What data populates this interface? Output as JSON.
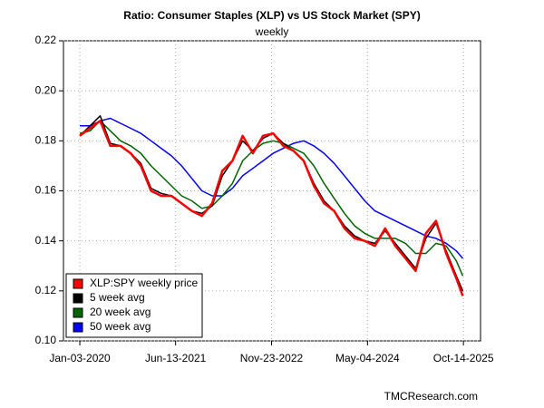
{
  "chart_data": {
    "type": "line",
    "title": "Ratio: Consumer Staples (XLP) vs US Stock Market (SPY)",
    "subtitle": "weekly",
    "source": "TMCResearch.com",
    "x": [
      "2020-01-03",
      "2020-02-28",
      "2020-04-24",
      "2020-06-19",
      "2020-08-14",
      "2020-10-09",
      "2020-12-04",
      "2021-01-29",
      "2021-03-26",
      "2021-05-21",
      "2021-07-16",
      "2021-09-10",
      "2021-11-05",
      "2021-12-31",
      "2022-02-25",
      "2022-04-22",
      "2022-06-17",
      "2022-08-12",
      "2022-10-07",
      "2022-12-02",
      "2023-01-27",
      "2023-03-24",
      "2023-05-19",
      "2023-07-14",
      "2023-09-08",
      "2023-11-03",
      "2023-12-29",
      "2024-02-23",
      "2024-04-19",
      "2024-06-14",
      "2024-08-09",
      "2024-10-04",
      "2024-11-29",
      "2025-01-24",
      "2025-03-21",
      "2025-05-16",
      "2025-07-11",
      "2025-09-05",
      "2025-10-10"
    ],
    "xlim": [
      "2019-10-05",
      "2026-01-16"
    ],
    "xticks": [
      {
        "value": "2020-01-03",
        "label": "Jan-03-2020"
      },
      {
        "value": "2021-06-13",
        "label": "Jun-13-2021"
      },
      {
        "value": "2022-11-23",
        "label": "Nov-23-2022"
      },
      {
        "value": "2024-05-04",
        "label": "May-04-2024"
      },
      {
        "value": "2025-10-14",
        "label": "Oct-14-2025"
      }
    ],
    "ylim": [
      0.1,
      0.22
    ],
    "yticks": [
      {
        "value": 0.1,
        "label": "0.10"
      },
      0.12,
      0.14,
      0.16,
      0.18,
      {
        "value": 0.2,
        "label": "0.20"
      },
      0.22
    ],
    "grid": true,
    "legend": "lower left",
    "series": [
      {
        "name": "XLP:SPY weekly price",
        "color": "#ff0000",
        "values": [
          0.182,
          0.185,
          0.188,
          0.178,
          0.178,
          0.175,
          0.17,
          0.16,
          0.158,
          0.158,
          0.155,
          0.152,
          0.15,
          0.155,
          0.168,
          0.172,
          0.182,
          0.175,
          0.182,
          0.183,
          0.178,
          0.176,
          0.172,
          0.162,
          0.155,
          0.152,
          0.145,
          0.141,
          0.14,
          0.138,
          0.145,
          0.138,
          0.133,
          0.128,
          0.143,
          0.148,
          0.135,
          0.125,
          0.118
        ]
      },
      {
        "name": "5 week avg",
        "color": "#000000",
        "values": [
          0.182,
          0.186,
          0.19,
          0.179,
          0.178,
          0.175,
          0.171,
          0.161,
          0.159,
          0.158,
          0.155,
          0.152,
          0.151,
          0.154,
          0.166,
          0.172,
          0.18,
          0.176,
          0.181,
          0.183,
          0.179,
          0.176,
          0.172,
          0.163,
          0.156,
          0.152,
          0.146,
          0.142,
          0.14,
          0.139,
          0.144,
          0.139,
          0.134,
          0.129,
          0.141,
          0.147,
          0.136,
          0.126,
          0.12
        ]
      },
      {
        "name": "20 week avg",
        "color": "#006400",
        "values": [
          0.183,
          0.184,
          0.188,
          0.184,
          0.18,
          0.178,
          0.175,
          0.17,
          0.166,
          0.162,
          0.158,
          0.156,
          0.153,
          0.154,
          0.158,
          0.163,
          0.172,
          0.176,
          0.179,
          0.18,
          0.179,
          0.177,
          0.175,
          0.17,
          0.163,
          0.157,
          0.151,
          0.146,
          0.143,
          0.141,
          0.141,
          0.141,
          0.139,
          0.135,
          0.135,
          0.139,
          0.138,
          0.132,
          0.126
        ]
      },
      {
        "name": "50 week avg",
        "color": "#0000ff",
        "values": [
          0.186,
          0.186,
          0.188,
          0.189,
          0.187,
          0.185,
          0.183,
          0.18,
          0.177,
          0.174,
          0.17,
          0.165,
          0.16,
          0.158,
          0.158,
          0.161,
          0.166,
          0.169,
          0.172,
          0.175,
          0.177,
          0.179,
          0.18,
          0.178,
          0.175,
          0.171,
          0.166,
          0.161,
          0.156,
          0.152,
          0.15,
          0.148,
          0.146,
          0.144,
          0.142,
          0.141,
          0.139,
          0.136,
          0.133
        ]
      }
    ]
  }
}
